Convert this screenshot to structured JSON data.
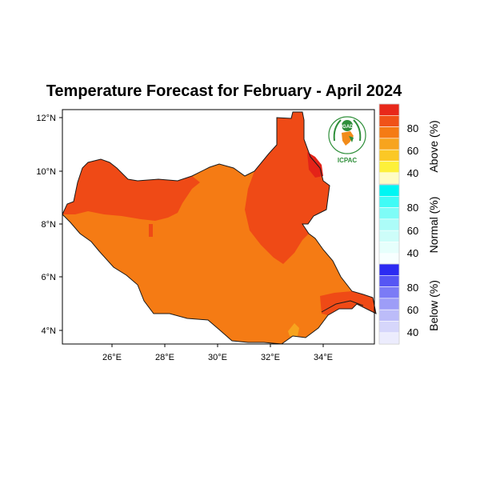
{
  "map": {
    "title": "Temperature Forecast for February - April 2024",
    "lat_ticks": [
      "12°N",
      "10°N",
      "8°N",
      "6°N",
      "4°N"
    ],
    "lon_ticks": [
      "26°E",
      "28°E",
      "30°E",
      "32°E",
      "34°E"
    ],
    "lat_range": [
      3.5,
      12.2
    ],
    "lon_range": [
      24.1,
      35.9
    ],
    "ocean_color": "#ffffff",
    "region_colors": {
      "above_60_70": "#f57b14",
      "above_70_80": "#ef4a16",
      "above_80_90": "#e42318",
      "above_50_60": "#f7a41e"
    }
  },
  "logo": {
    "text_top": "IGAD",
    "text_bottom": "ICPAC"
  },
  "legend": {
    "groups": [
      {
        "label": "Above (%)",
        "ticks": [
          "80",
          "60",
          "40"
        ],
        "colors": [
          "#e8281a",
          "#f05218",
          "#f57b14",
          "#f7a41e",
          "#fbc825",
          "#fdf03a",
          "#fffcc4"
        ]
      },
      {
        "label": "Normal (%)",
        "ticks": [
          "80",
          "60",
          "40"
        ],
        "colors": [
          "#00f6f3",
          "#40fbf6",
          "#7efcf7",
          "#acfcf8",
          "#cdfdf9",
          "#e6fffc",
          "#f7ffff"
        ]
      },
      {
        "label": "Below (%)",
        "ticks": [
          "80",
          "60",
          "40"
        ],
        "colors": [
          "#2b2bf2",
          "#5656f4",
          "#7b7bf6",
          "#9d9df7",
          "#bcbcf9",
          "#d6d6fb",
          "#ececfd"
        ]
      }
    ]
  }
}
